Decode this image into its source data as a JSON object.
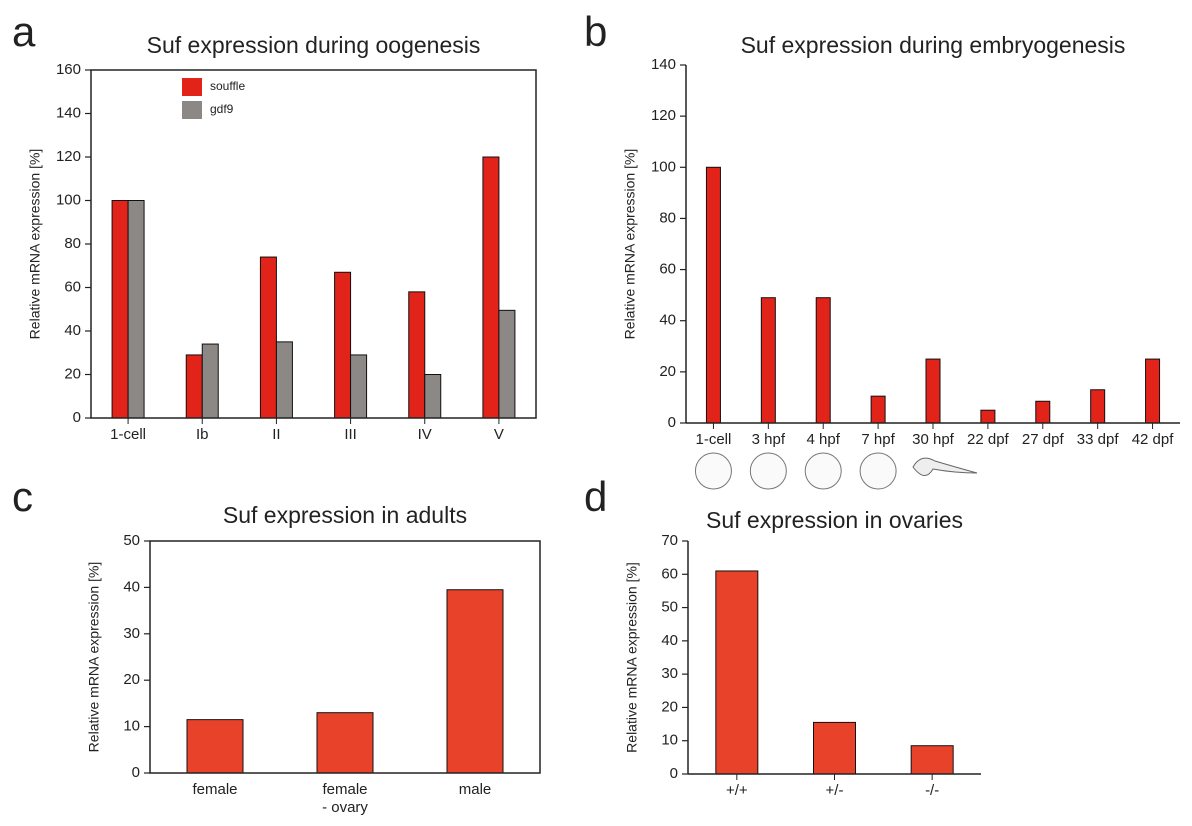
{
  "chart_data": [
    {
      "type": "bar",
      "label": "a",
      "title": "Suf expression during oogenesis",
      "y_label": "Relative mRNA expression [%]",
      "categories": [
        "1-cell",
        "Ib",
        "II",
        "III",
        "IV",
        "V"
      ],
      "series": [
        {
          "name": "souffle",
          "color": "#e2231a",
          "values": [
            100,
            29,
            74,
            67,
            58,
            120
          ]
        },
        {
          "name": "gdf9",
          "color": "#8c8885",
          "values": [
            100,
            34,
            35,
            29,
            20,
            49.5
          ]
        }
      ],
      "ylim": [
        0,
        160
      ],
      "yticks": [
        0,
        20,
        40,
        60,
        80,
        100,
        120,
        140,
        160
      ]
    },
    {
      "type": "bar",
      "label": "b",
      "title": "Suf expression during embryogenesis",
      "y_label": "Relative mRNA expression [%]",
      "categories": [
        "1-cell",
        "3 hpf",
        "4 hpf",
        "7 hpf",
        "30 hpf",
        "22 dpf",
        "27 dpf",
        "33 dpf",
        "42 dpf"
      ],
      "values": [
        100,
        49,
        49,
        10.5,
        25,
        5,
        8.5,
        13,
        25
      ],
      "color": "#e2231a",
      "ylim": [
        0,
        140
      ],
      "yticks": [
        0,
        20,
        40,
        60,
        80,
        100,
        120,
        140
      ]
    },
    {
      "type": "bar",
      "label": "c",
      "title": "Suf expression in adults",
      "y_label": "Relative mRNA expression [%]",
      "categories": [
        "female",
        "female\n- ovary",
        "male"
      ],
      "values": [
        11.5,
        13,
        39.5
      ],
      "color": "#e8432a",
      "ylim": [
        0,
        50
      ],
      "yticks": [
        0,
        10,
        20,
        30,
        40,
        50
      ]
    },
    {
      "type": "bar",
      "label": "d",
      "title": "Suf expression in ovaries",
      "y_label": "Relative mRNA expression [%]",
      "categories": [
        "+/+",
        "+/-",
        "-/-"
      ],
      "values": [
        61,
        15.5,
        8.5
      ],
      "color": "#e8432a",
      "ylim": [
        0,
        70
      ],
      "yticks": [
        0,
        10,
        20,
        30,
        40,
        50,
        60,
        70
      ]
    }
  ]
}
